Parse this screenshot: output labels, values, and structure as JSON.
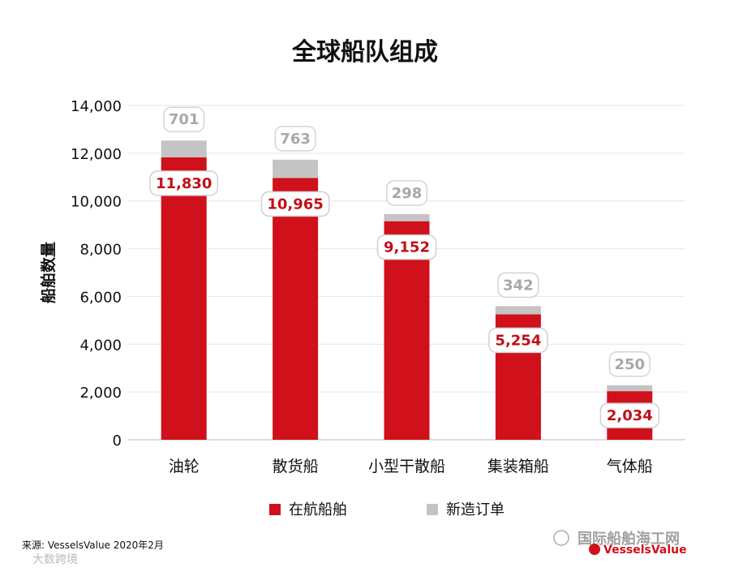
{
  "chart_data": {
    "type": "bar",
    "stacked": true,
    "title": "全球船队组成",
    "ylabel": "船舶数量",
    "xlabel": "",
    "ylim": [
      0,
      14000
    ],
    "yticks": [
      0,
      2000,
      4000,
      6000,
      8000,
      10000,
      12000,
      14000
    ],
    "ytick_labels": [
      "0",
      "2,000",
      "4,000",
      "6,000",
      "8,000",
      "10,000",
      "12,000",
      "14,000"
    ],
    "grid": true,
    "legend_position": "bottom-center",
    "categories": [
      "油轮",
      "散货船",
      "小型干散船",
      "集装箱船",
      "气体船"
    ],
    "series": [
      {
        "name": "在航船舶",
        "color": "#d0101a",
        "values": [
          11830,
          10965,
          9152,
          5254,
          2034
        ],
        "labels": [
          "11,830",
          "10,965",
          "9,152",
          "5,254",
          "2,034"
        ]
      },
      {
        "name": "新造订单",
        "color": "#c4c4c4",
        "values": [
          701,
          763,
          298,
          342,
          250
        ],
        "labels": [
          "701",
          "763",
          "298",
          "342",
          "250"
        ]
      }
    ]
  },
  "footer": {
    "source": "来源: VesselsValue 2020年2月",
    "brand": "VesselsValue"
  },
  "watermark": {
    "text": "国际船舶海工网",
    "corner": "大数跨境"
  }
}
